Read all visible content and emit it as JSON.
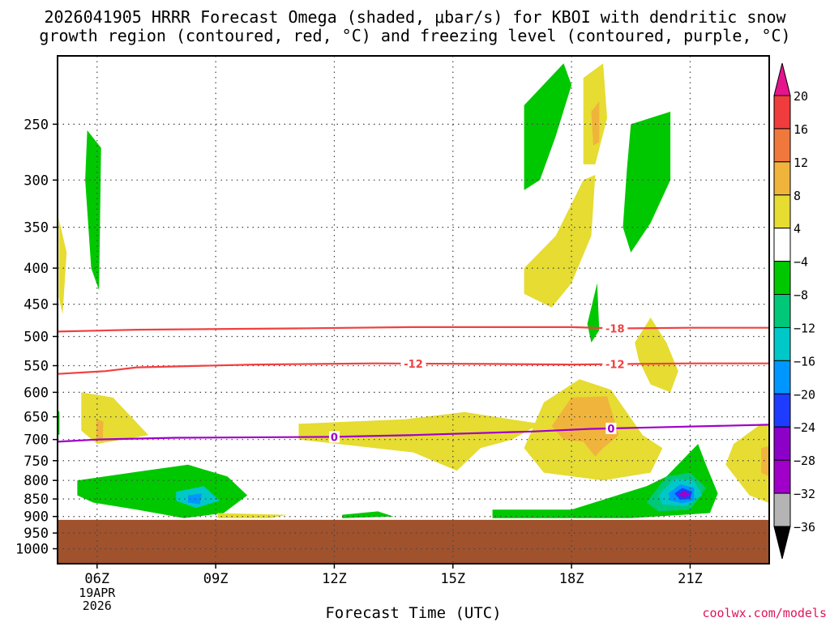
{
  "title": {
    "line1": "2026041905 HRRR Forecast Omega (shaded, μbar/s) for KBOI with dendritic snow",
    "line2": "growth region (contoured, red, °C) and freezing level (contoured, purple, °C)"
  },
  "xlabel": "Forecast Time (UTC)",
  "credit": "coolwx.com/models",
  "colors": {
    "ground": "#a0522d",
    "dgz_line": "#f04040",
    "freezing_line": "#a000c8",
    "grid": "#444444"
  },
  "chart_data": {
    "type": "time-height cross section",
    "x": {
      "unit": "hours since 2026-04-19 05Z",
      "range": [
        0,
        18
      ],
      "ticks": [
        {
          "value": 1,
          "label": "06Z",
          "sub1": "19APR",
          "sub2": "2026"
        },
        {
          "value": 4,
          "label": "09Z",
          "sub1": "",
          "sub2": ""
        },
        {
          "value": 7,
          "label": "12Z",
          "sub1": "",
          "sub2": ""
        },
        {
          "value": 10,
          "label": "15Z",
          "sub1": "",
          "sub2": ""
        },
        {
          "value": 13,
          "label": "18Z",
          "sub1": "",
          "sub2": ""
        },
        {
          "value": 16,
          "label": "21Z",
          "sub1": "",
          "sub2": ""
        }
      ]
    },
    "y": {
      "unit": "hPa",
      "scale": "log",
      "range": [
        1050,
        200
      ],
      "ticks": [
        250,
        300,
        350,
        400,
        450,
        500,
        550,
        600,
        650,
        700,
        750,
        800,
        850,
        900,
        950,
        1000
      ],
      "tick_labels": [
        "250",
        "300",
        "350",
        "400",
        "450",
        "500",
        "550",
        "600",
        "650",
        "700",
        "750",
        "800",
        "850",
        "900",
        "950",
        "1000"
      ]
    },
    "ground_top_hPa": 910,
    "colorbar": {
      "labels": [
        "20",
        "16",
        "12",
        "8",
        "4",
        "−4",
        "−8",
        "−12",
        "−16",
        "−20",
        "−24",
        "−28",
        "−32",
        "−36"
      ],
      "bins": [
        {
          "color": "#f03c3c"
        },
        {
          "color": "#f0783c"
        },
        {
          "color": "#f0b43c"
        },
        {
          "color": "#e6dc32"
        },
        {
          "color": "#ffffff"
        },
        {
          "color": "#00c800"
        },
        {
          "color": "#00c878"
        },
        {
          "color": "#00c8c8"
        },
        {
          "color": "#0096ff"
        },
        {
          "color": "#1e3cff"
        },
        {
          "color": "#8c00c8"
        },
        {
          "color": "#a000c8"
        },
        {
          "color": "#b4b4b4"
        }
      ],
      "top_arrow_color": "#e6148c",
      "bottom_arrow_color": "#000000"
    },
    "omega_regions": [
      {
        "color": "#e6dc32",
        "pts": [
          [
            0.03,
            340
          ],
          [
            0.23,
            380
          ],
          [
            0.13,
            465
          ],
          [
            0.03,
            440
          ]
        ]
      },
      {
        "color": "#00c800",
        "pts": [
          [
            0.75,
            255
          ],
          [
            1.1,
            270
          ],
          [
            1.05,
            430
          ],
          [
            0.85,
            400
          ],
          [
            0.7,
            300
          ]
        ]
      },
      {
        "color": "#e6dc32",
        "pts": [
          [
            0.6,
            600
          ],
          [
            1.4,
            610
          ],
          [
            2.3,
            690
          ],
          [
            1.0,
            710
          ],
          [
            0.6,
            680
          ]
        ]
      },
      {
        "color": "#f0b43c",
        "pts": [
          [
            0.98,
            655
          ],
          [
            1.16,
            660
          ],
          [
            1.14,
            705
          ],
          [
            0.98,
            700
          ]
        ]
      },
      {
        "color": "#00c800",
        "pts": [
          [
            -0.1,
            625
          ],
          [
            0.05,
            640
          ],
          [
            0.05,
            690
          ],
          [
            -0.1,
            680
          ]
        ]
      },
      {
        "color": "#00c800",
        "pts": [
          [
            0.5,
            800
          ],
          [
            2.2,
            775
          ],
          [
            3.3,
            760
          ],
          [
            4.3,
            790
          ],
          [
            4.8,
            840
          ],
          [
            4.2,
            890
          ],
          [
            3.2,
            905
          ],
          [
            2.0,
            880
          ],
          [
            0.9,
            860
          ],
          [
            0.5,
            840
          ]
        ]
      },
      {
        "color": "#00c8c8",
        "pts": [
          [
            3.0,
            830
          ],
          [
            3.7,
            815
          ],
          [
            4.1,
            855
          ],
          [
            3.5,
            875
          ],
          [
            3.0,
            855
          ]
        ]
      },
      {
        "color": "#0096ff",
        "pts": [
          [
            3.3,
            840
          ],
          [
            3.65,
            835
          ],
          [
            3.6,
            865
          ],
          [
            3.3,
            860
          ]
        ]
      },
      {
        "color": "#e6dc32",
        "pts": [
          [
            4.05,
            890
          ],
          [
            5.8,
            895
          ],
          [
            5.4,
            905
          ],
          [
            4.05,
            905
          ]
        ]
      },
      {
        "color": "#00c800",
        "pts": [
          [
            7.2,
            895
          ],
          [
            8.1,
            885
          ],
          [
            8.5,
            900
          ],
          [
            7.2,
            905
          ]
        ]
      },
      {
        "color": "#e6dc32",
        "pts": [
          [
            6.1,
            665
          ],
          [
            8.8,
            655
          ],
          [
            10.3,
            640
          ],
          [
            12.2,
            665
          ],
          [
            11.5,
            700
          ],
          [
            10.7,
            720
          ],
          [
            10.1,
            775
          ],
          [
            9.0,
            730
          ],
          [
            6.1,
            700
          ]
        ]
      },
      {
        "color": "#e6dc32",
        "pts": [
          [
            12.3,
            620
          ],
          [
            13.2,
            575
          ],
          [
            14.0,
            595
          ],
          [
            14.8,
            690
          ],
          [
            15.3,
            720
          ],
          [
            15.0,
            780
          ],
          [
            13.8,
            800
          ],
          [
            12.3,
            780
          ],
          [
            11.8,
            720
          ]
        ]
      },
      {
        "color": "#f0b43c",
        "pts": [
          [
            13.0,
            610
          ],
          [
            13.9,
            608
          ],
          [
            14.2,
            690
          ],
          [
            13.8,
            720
          ],
          [
            13.6,
            740
          ],
          [
            13.3,
            705
          ],
          [
            12.8,
            700
          ],
          [
            12.5,
            670
          ]
        ]
      },
      {
        "color": "#00c800",
        "pts": [
          [
            11.0,
            880
          ],
          [
            13.0,
            880
          ],
          [
            14.9,
            815
          ],
          [
            15.4,
            790
          ],
          [
            16.2,
            710
          ],
          [
            16.4,
            760
          ],
          [
            16.7,
            835
          ],
          [
            16.5,
            890
          ],
          [
            14.5,
            905
          ],
          [
            11.0,
            905
          ]
        ]
      },
      {
        "color": "#00c878",
        "pts": [
          [
            14.9,
            860
          ],
          [
            15.4,
            790
          ],
          [
            16.0,
            780
          ],
          [
            16.4,
            820
          ],
          [
            16.0,
            880
          ],
          [
            15.2,
            885
          ]
        ]
      },
      {
        "color": "#00c8c8",
        "pts": [
          [
            15.2,
            840
          ],
          [
            15.6,
            795
          ],
          [
            16.1,
            800
          ],
          [
            16.3,
            840
          ],
          [
            15.9,
            870
          ],
          [
            15.3,
            865
          ]
        ]
      },
      {
        "color": "#0096ff",
        "pts": [
          [
            15.45,
            835
          ],
          [
            15.75,
            810
          ],
          [
            16.1,
            820
          ],
          [
            16.1,
            855
          ],
          [
            15.8,
            862
          ],
          [
            15.5,
            855
          ]
        ]
      },
      {
        "color": "#1e3cff",
        "pts": [
          [
            15.6,
            835
          ],
          [
            15.8,
            820
          ],
          [
            16.05,
            830
          ],
          [
            16.0,
            850
          ],
          [
            15.75,
            852
          ]
        ]
      },
      {
        "color": "#a000c8",
        "pts": [
          [
            15.7,
            838
          ],
          [
            15.85,
            828
          ],
          [
            16.0,
            837
          ],
          [
            15.85,
            846
          ]
        ]
      },
      {
        "color": "#e6dc32",
        "pts": [
          [
            17.1,
            710
          ],
          [
            17.8,
            665
          ],
          [
            18.2,
            675
          ],
          [
            18.2,
            870
          ],
          [
            17.5,
            840
          ],
          [
            16.9,
            760
          ]
        ]
      },
      {
        "color": "#f0b43c",
        "pts": [
          [
            17.8,
            720
          ],
          [
            18.2,
            710
          ],
          [
            18.2,
            800
          ],
          [
            17.8,
            780
          ]
        ]
      },
      {
        "color": "#00c800",
        "pts": [
          [
            11.8,
            235
          ],
          [
            12.8,
            205
          ],
          [
            13.0,
            220
          ],
          [
            12.6,
            260
          ],
          [
            12.2,
            300
          ],
          [
            11.8,
            310
          ]
        ]
      },
      {
        "color": "#e6dc32",
        "pts": [
          [
            13.3,
            215
          ],
          [
            13.8,
            205
          ],
          [
            13.9,
            245
          ],
          [
            13.6,
            285
          ],
          [
            13.3,
            285
          ]
        ]
      },
      {
        "color": "#f0b43c",
        "pts": [
          [
            13.5,
            240
          ],
          [
            13.7,
            232
          ],
          [
            13.7,
            265
          ],
          [
            13.55,
            268
          ]
        ]
      },
      {
        "color": "#e6dc32",
        "pts": [
          [
            11.8,
            400
          ],
          [
            12.6,
            360
          ],
          [
            13.3,
            300
          ],
          [
            13.6,
            295
          ],
          [
            13.5,
            360
          ],
          [
            13.0,
            420
          ],
          [
            12.5,
            455
          ],
          [
            11.8,
            435
          ]
        ]
      },
      {
        "color": "#00c800",
        "pts": [
          [
            14.5,
            250
          ],
          [
            15.5,
            240
          ],
          [
            15.5,
            300
          ],
          [
            15.0,
            345
          ],
          [
            14.5,
            380
          ],
          [
            14.3,
            350
          ],
          [
            14.4,
            290
          ]
        ]
      },
      {
        "color": "#00c800",
        "pts": [
          [
            13.4,
            480
          ],
          [
            13.65,
            420
          ],
          [
            13.7,
            490
          ],
          [
            13.5,
            510
          ]
        ]
      },
      {
        "color": "#e6dc32",
        "pts": [
          [
            14.6,
            510
          ],
          [
            15.0,
            470
          ],
          [
            15.4,
            510
          ],
          [
            15.7,
            560
          ],
          [
            15.5,
            600
          ],
          [
            15.0,
            585
          ],
          [
            14.7,
            540
          ]
        ]
      }
    ],
    "contours": [
      {
        "name": "dgz-line-minus18",
        "color": "#f04040",
        "label": "-18",
        "label_x": 14.1,
        "pts": [
          [
            0,
            492
          ],
          [
            2,
            489
          ],
          [
            6,
            487
          ],
          [
            9,
            485
          ],
          [
            13,
            485
          ],
          [
            14.1,
            487
          ],
          [
            16,
            486
          ],
          [
            18,
            486
          ]
        ]
      },
      {
        "name": "dgz-line-minus12",
        "color": "#f04040",
        "label": "-12",
        "label_x": 9.0,
        "label2_x": 14.1,
        "pts": [
          [
            0,
            565
          ],
          [
            1.2,
            560
          ],
          [
            2,
            553
          ],
          [
            5,
            548
          ],
          [
            8,
            546
          ],
          [
            11,
            547
          ],
          [
            13,
            548
          ],
          [
            14.5,
            547
          ],
          [
            16,
            546
          ],
          [
            18,
            546
          ]
        ]
      },
      {
        "name": "freezing-line-0",
        "color": "#a000c8",
        "label": "0",
        "label_x": 7.0,
        "label2_x": 14.0,
        "pts": [
          [
            0,
            705
          ],
          [
            1,
            700
          ],
          [
            3,
            696
          ],
          [
            7,
            694
          ],
          [
            9,
            690
          ],
          [
            12,
            682
          ],
          [
            13.5,
            676
          ],
          [
            15,
            673
          ],
          [
            18,
            667
          ]
        ]
      }
    ]
  }
}
